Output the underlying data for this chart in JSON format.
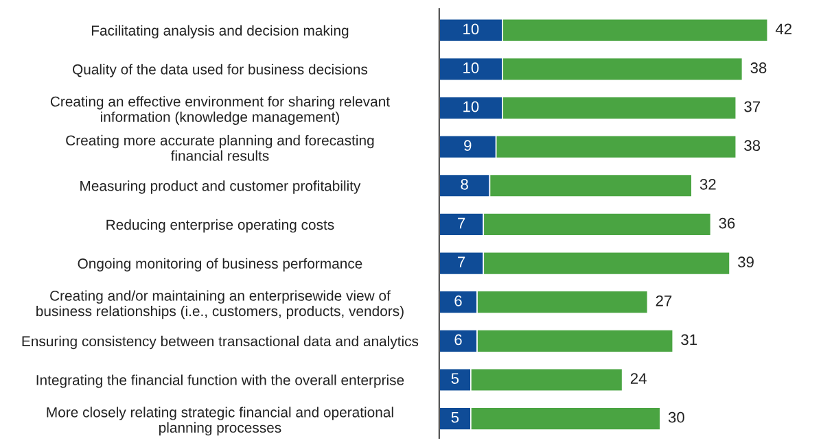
{
  "chart_data": {
    "type": "bar",
    "orientation": "horizontal",
    "stacked": true,
    "data_labels": true,
    "grid": false,
    "legend": false,
    "categories": [
      "Facilitating analysis and decision making",
      "Quality of the data used for business decisions",
      "Creating an effective environment for sharing relevant\ninformation (knowledge management)",
      "Creating more accurate planning and forecasting\nfinancial results",
      "Measuring product and customer profitability",
      "Reducing enterprise operating costs",
      "Ongoing monitoring of business performance",
      "Creating and/or maintaining an enterprisewide view of\nbusiness relationships (i.e., customers, products, vendors)",
      "Ensuring consistency between transactional data and analytics",
      "Integrating the financial function with the overall enterprise",
      "More closely relating strategic financial and operational\nplanning processes"
    ],
    "series": [
      {
        "color": "#0f4c97",
        "values": [
          10,
          10,
          10,
          9,
          8,
          7,
          7,
          6,
          6,
          5,
          5
        ]
      },
      {
        "color": "#4aa442",
        "values": [
          42,
          38,
          37,
          38,
          32,
          36,
          39,
          27,
          31,
          24,
          30
        ]
      }
    ]
  }
}
